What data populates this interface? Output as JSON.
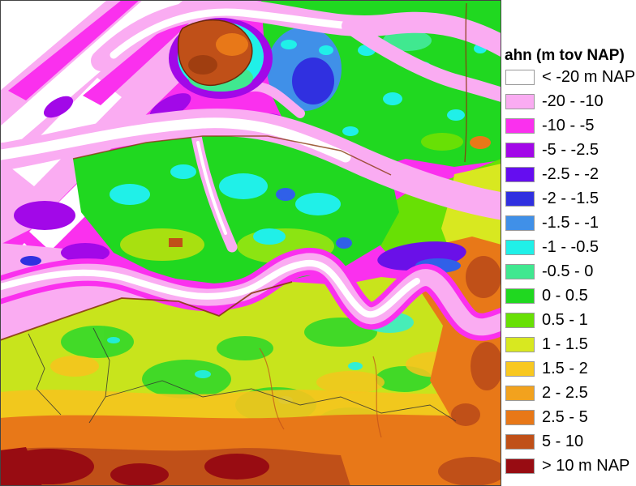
{
  "legend": {
    "title": "ahn (m tov NAP)",
    "items": [
      {
        "label": "< -20 m NAP",
        "color": "#FFFFFF"
      },
      {
        "label": "-20 - -10",
        "color": "#FAACF2"
      },
      {
        "label": "-10 - -5",
        "color": "#FA30EE"
      },
      {
        "label": "-5 - -2.5",
        "color": "#A208E8"
      },
      {
        "label": "-2.5 - -2",
        "color": "#650DF0"
      },
      {
        "label": "-2 - -1.5",
        "color": "#3030E0"
      },
      {
        "label": "-1.5 - -1",
        "color": "#4090E8"
      },
      {
        "label": "-1 - -0.5",
        "color": "#20F0E8"
      },
      {
        "label": "-0.5 - 0",
        "color": "#40E890"
      },
      {
        "label": "0 - 0.5",
        "color": "#20D820"
      },
      {
        "label": "0.5 - 1",
        "color": "#68E005"
      },
      {
        "label": "1 - 1.5",
        "color": "#D8E820"
      },
      {
        "label": "1.5 - 2",
        "color": "#F8C820"
      },
      {
        "label": "2 - 2.5",
        "color": "#F2A21E"
      },
      {
        "label": "2.5 - 5",
        "color": "#E87818"
      },
      {
        "label": "5 - 10",
        "color": "#C05018"
      },
      {
        "label": "> 10 m NAP",
        "color": "#980C12"
      }
    ]
  }
}
